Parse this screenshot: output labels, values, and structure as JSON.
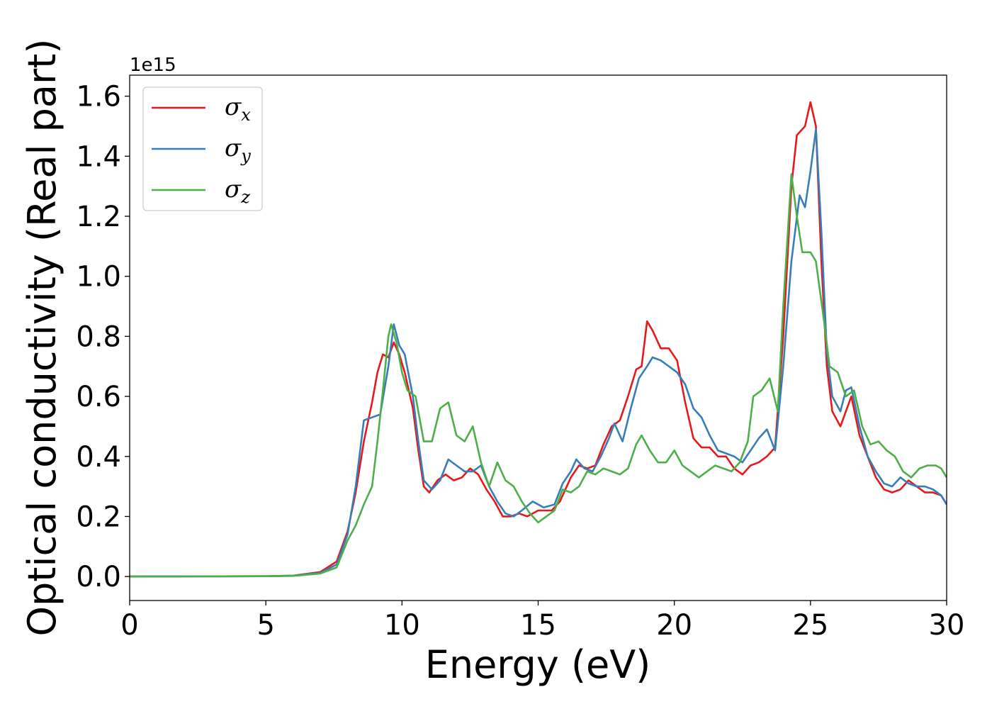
{
  "chart_data": {
    "type": "line",
    "title": "",
    "xlabel": "Energy (eV)",
    "ylabel": "Optical conductivity (Real part)",
    "y_offset_label": "1e15",
    "xlim": [
      0,
      30
    ],
    "ylim": [
      -0.08,
      1.67
    ],
    "x_ticks": [
      0,
      5,
      10,
      15,
      20,
      25,
      30
    ],
    "x_tick_labels": [
      "0",
      "5",
      "10",
      "15",
      "20",
      "25",
      "30"
    ],
    "y_ticks": [
      0.0,
      0.2,
      0.4,
      0.6,
      0.8,
      1.0,
      1.2,
      1.4,
      1.6
    ],
    "y_tick_labels": [
      "0.0",
      "0.2",
      "0.4",
      "0.6",
      "0.8",
      "1.0",
      "1.2",
      "1.4",
      "1.6"
    ],
    "grid": false,
    "legend_position": "top-left",
    "series": [
      {
        "name": "σx",
        "symbol": "σ",
        "subscript": "x",
        "color": "#e41a1c",
        "points": [
          [
            0,
            0
          ],
          [
            5,
            0.001
          ],
          [
            6,
            0.003
          ],
          [
            7,
            0.015
          ],
          [
            7.6,
            0.05
          ],
          [
            8.0,
            0.15
          ],
          [
            8.3,
            0.28
          ],
          [
            8.6,
            0.45
          ],
          [
            8.9,
            0.58
          ],
          [
            9.1,
            0.68
          ],
          [
            9.3,
            0.74
          ],
          [
            9.5,
            0.73
          ],
          [
            9.7,
            0.78
          ],
          [
            9.9,
            0.74
          ],
          [
            10.1,
            0.68
          ],
          [
            10.4,
            0.56
          ],
          [
            10.6,
            0.42
          ],
          [
            10.8,
            0.3
          ],
          [
            11.0,
            0.28
          ],
          [
            11.3,
            0.32
          ],
          [
            11.6,
            0.34
          ],
          [
            11.9,
            0.32
          ],
          [
            12.2,
            0.33
          ],
          [
            12.5,
            0.36
          ],
          [
            12.8,
            0.34
          ],
          [
            13.1,
            0.29
          ],
          [
            13.4,
            0.25
          ],
          [
            13.7,
            0.2
          ],
          [
            14.0,
            0.2
          ],
          [
            14.3,
            0.21
          ],
          [
            14.6,
            0.2
          ],
          [
            15.0,
            0.22
          ],
          [
            15.5,
            0.22
          ],
          [
            15.8,
            0.25
          ],
          [
            16.2,
            0.33
          ],
          [
            16.5,
            0.37
          ],
          [
            16.8,
            0.36
          ],
          [
            17.1,
            0.37
          ],
          [
            17.4,
            0.44
          ],
          [
            17.7,
            0.5
          ],
          [
            18.0,
            0.52
          ],
          [
            18.3,
            0.6
          ],
          [
            18.6,
            0.69
          ],
          [
            18.8,
            0.7
          ],
          [
            19.0,
            0.85
          ],
          [
            19.2,
            0.82
          ],
          [
            19.5,
            0.76
          ],
          [
            19.8,
            0.76
          ],
          [
            20.1,
            0.72
          ],
          [
            20.4,
            0.58
          ],
          [
            20.7,
            0.46
          ],
          [
            21.0,
            0.43
          ],
          [
            21.3,
            0.43
          ],
          [
            21.6,
            0.4
          ],
          [
            21.9,
            0.4
          ],
          [
            22.2,
            0.36
          ],
          [
            22.5,
            0.34
          ],
          [
            22.8,
            0.37
          ],
          [
            23.1,
            0.38
          ],
          [
            23.4,
            0.4
          ],
          [
            23.7,
            0.43
          ],
          [
            24.0,
            0.8
          ],
          [
            24.3,
            1.3
          ],
          [
            24.5,
            1.47
          ],
          [
            24.8,
            1.5
          ],
          [
            25.0,
            1.58
          ],
          [
            25.2,
            1.5
          ],
          [
            25.4,
            1.05
          ],
          [
            25.6,
            0.7
          ],
          [
            25.8,
            0.55
          ],
          [
            26.1,
            0.5
          ],
          [
            26.3,
            0.55
          ],
          [
            26.5,
            0.6
          ],
          [
            26.8,
            0.47
          ],
          [
            27.1,
            0.4
          ],
          [
            27.4,
            0.33
          ],
          [
            27.7,
            0.29
          ],
          [
            28.0,
            0.28
          ],
          [
            28.3,
            0.29
          ],
          [
            28.6,
            0.32
          ],
          [
            28.9,
            0.3
          ],
          [
            29.2,
            0.28
          ],
          [
            29.5,
            0.28
          ],
          [
            29.8,
            0.27
          ],
          [
            30.0,
            0.24
          ]
        ]
      },
      {
        "name": "σy",
        "symbol": "σ",
        "subscript": "y",
        "color": "#377eb8",
        "points": [
          [
            0,
            0
          ],
          [
            5,
            0.001
          ],
          [
            6,
            0.003
          ],
          [
            7,
            0.012
          ],
          [
            7.6,
            0.04
          ],
          [
            8.0,
            0.14
          ],
          [
            8.3,
            0.3
          ],
          [
            8.6,
            0.52
          ],
          [
            8.9,
            0.53
          ],
          [
            9.2,
            0.54
          ],
          [
            9.5,
            0.7
          ],
          [
            9.7,
            0.84
          ],
          [
            9.9,
            0.77
          ],
          [
            10.1,
            0.74
          ],
          [
            10.4,
            0.6
          ],
          [
            10.6,
            0.45
          ],
          [
            10.8,
            0.32
          ],
          [
            11.1,
            0.29
          ],
          [
            11.4,
            0.32
          ],
          [
            11.7,
            0.39
          ],
          [
            12.0,
            0.37
          ],
          [
            12.3,
            0.35
          ],
          [
            12.6,
            0.35
          ],
          [
            12.9,
            0.37
          ],
          [
            13.2,
            0.3
          ],
          [
            13.5,
            0.25
          ],
          [
            13.8,
            0.21
          ],
          [
            14.1,
            0.2
          ],
          [
            14.4,
            0.22
          ],
          [
            14.8,
            0.25
          ],
          [
            15.2,
            0.23
          ],
          [
            15.6,
            0.24
          ],
          [
            15.9,
            0.31
          ],
          [
            16.2,
            0.35
          ],
          [
            16.4,
            0.39
          ],
          [
            16.7,
            0.36
          ],
          [
            17.0,
            0.35
          ],
          [
            17.3,
            0.4
          ],
          [
            17.6,
            0.46
          ],
          [
            17.8,
            0.51
          ],
          [
            18.1,
            0.45
          ],
          [
            18.4,
            0.56
          ],
          [
            18.7,
            0.66
          ],
          [
            19.0,
            0.7
          ],
          [
            19.2,
            0.73
          ],
          [
            19.5,
            0.72
          ],
          [
            19.8,
            0.7
          ],
          [
            20.1,
            0.68
          ],
          [
            20.4,
            0.64
          ],
          [
            20.7,
            0.56
          ],
          [
            21.0,
            0.53
          ],
          [
            21.3,
            0.47
          ],
          [
            21.6,
            0.42
          ],
          [
            21.9,
            0.41
          ],
          [
            22.2,
            0.4
          ],
          [
            22.5,
            0.38
          ],
          [
            22.8,
            0.42
          ],
          [
            23.1,
            0.46
          ],
          [
            23.4,
            0.49
          ],
          [
            23.7,
            0.42
          ],
          [
            24.0,
            0.7
          ],
          [
            24.3,
            1.05
          ],
          [
            24.6,
            1.27
          ],
          [
            24.8,
            1.23
          ],
          [
            25.0,
            1.35
          ],
          [
            25.2,
            1.49
          ],
          [
            25.4,
            1.15
          ],
          [
            25.6,
            0.75
          ],
          [
            25.8,
            0.6
          ],
          [
            26.1,
            0.55
          ],
          [
            26.3,
            0.62
          ],
          [
            26.5,
            0.63
          ],
          [
            26.8,
            0.5
          ],
          [
            27.1,
            0.4
          ],
          [
            27.4,
            0.35
          ],
          [
            27.7,
            0.31
          ],
          [
            28.0,
            0.3
          ],
          [
            28.3,
            0.33
          ],
          [
            28.6,
            0.31
          ],
          [
            28.9,
            0.3
          ],
          [
            29.2,
            0.3
          ],
          [
            29.5,
            0.29
          ],
          [
            29.8,
            0.27
          ],
          [
            30.0,
            0.24
          ]
        ]
      },
      {
        "name": "σz",
        "symbol": "σ",
        "subscript": "z",
        "color": "#4daf4a",
        "points": [
          [
            0,
            0
          ],
          [
            5,
            0.001
          ],
          [
            6,
            0.002
          ],
          [
            7,
            0.01
          ],
          [
            7.6,
            0.03
          ],
          [
            8.0,
            0.12
          ],
          [
            8.3,
            0.17
          ],
          [
            8.6,
            0.24
          ],
          [
            8.9,
            0.3
          ],
          [
            9.1,
            0.45
          ],
          [
            9.3,
            0.62
          ],
          [
            9.5,
            0.8
          ],
          [
            9.6,
            0.84
          ],
          [
            9.8,
            0.78
          ],
          [
            10.0,
            0.68
          ],
          [
            10.2,
            0.62
          ],
          [
            10.5,
            0.6
          ],
          [
            10.8,
            0.45
          ],
          [
            11.1,
            0.45
          ],
          [
            11.4,
            0.56
          ],
          [
            11.7,
            0.58
          ],
          [
            12.0,
            0.47
          ],
          [
            12.3,
            0.45
          ],
          [
            12.6,
            0.5
          ],
          [
            12.9,
            0.38
          ],
          [
            13.2,
            0.3
          ],
          [
            13.5,
            0.38
          ],
          [
            13.8,
            0.32
          ],
          [
            14.1,
            0.3
          ],
          [
            14.4,
            0.25
          ],
          [
            14.7,
            0.21
          ],
          [
            15.0,
            0.18
          ],
          [
            15.3,
            0.2
          ],
          [
            15.6,
            0.22
          ],
          [
            15.9,
            0.29
          ],
          [
            16.2,
            0.28
          ],
          [
            16.5,
            0.3
          ],
          [
            16.8,
            0.35
          ],
          [
            17.1,
            0.34
          ],
          [
            17.4,
            0.36
          ],
          [
            17.7,
            0.35
          ],
          [
            18.0,
            0.34
          ],
          [
            18.3,
            0.36
          ],
          [
            18.6,
            0.44
          ],
          [
            18.8,
            0.47
          ],
          [
            19.1,
            0.42
          ],
          [
            19.4,
            0.38
          ],
          [
            19.7,
            0.38
          ],
          [
            20.0,
            0.42
          ],
          [
            20.3,
            0.37
          ],
          [
            20.6,
            0.35
          ],
          [
            20.9,
            0.33
          ],
          [
            21.2,
            0.35
          ],
          [
            21.5,
            0.37
          ],
          [
            21.8,
            0.36
          ],
          [
            22.1,
            0.35
          ],
          [
            22.4,
            0.38
          ],
          [
            22.7,
            0.45
          ],
          [
            22.9,
            0.6
          ],
          [
            23.2,
            0.62
          ],
          [
            23.5,
            0.66
          ],
          [
            23.8,
            0.55
          ],
          [
            24.0,
            0.9
          ],
          [
            24.3,
            1.34
          ],
          [
            24.5,
            1.2
          ],
          [
            24.7,
            1.08
          ],
          [
            25.0,
            1.08
          ],
          [
            25.2,
            1.05
          ],
          [
            25.5,
            0.85
          ],
          [
            25.7,
            0.7
          ],
          [
            26.0,
            0.68
          ],
          [
            26.3,
            0.6
          ],
          [
            26.6,
            0.62
          ],
          [
            26.9,
            0.5
          ],
          [
            27.2,
            0.44
          ],
          [
            27.5,
            0.45
          ],
          [
            27.8,
            0.42
          ],
          [
            28.1,
            0.4
          ],
          [
            28.4,
            0.35
          ],
          [
            28.7,
            0.33
          ],
          [
            29.0,
            0.36
          ],
          [
            29.3,
            0.37
          ],
          [
            29.6,
            0.37
          ],
          [
            29.8,
            0.36
          ],
          [
            30.0,
            0.33
          ]
        ]
      }
    ]
  }
}
